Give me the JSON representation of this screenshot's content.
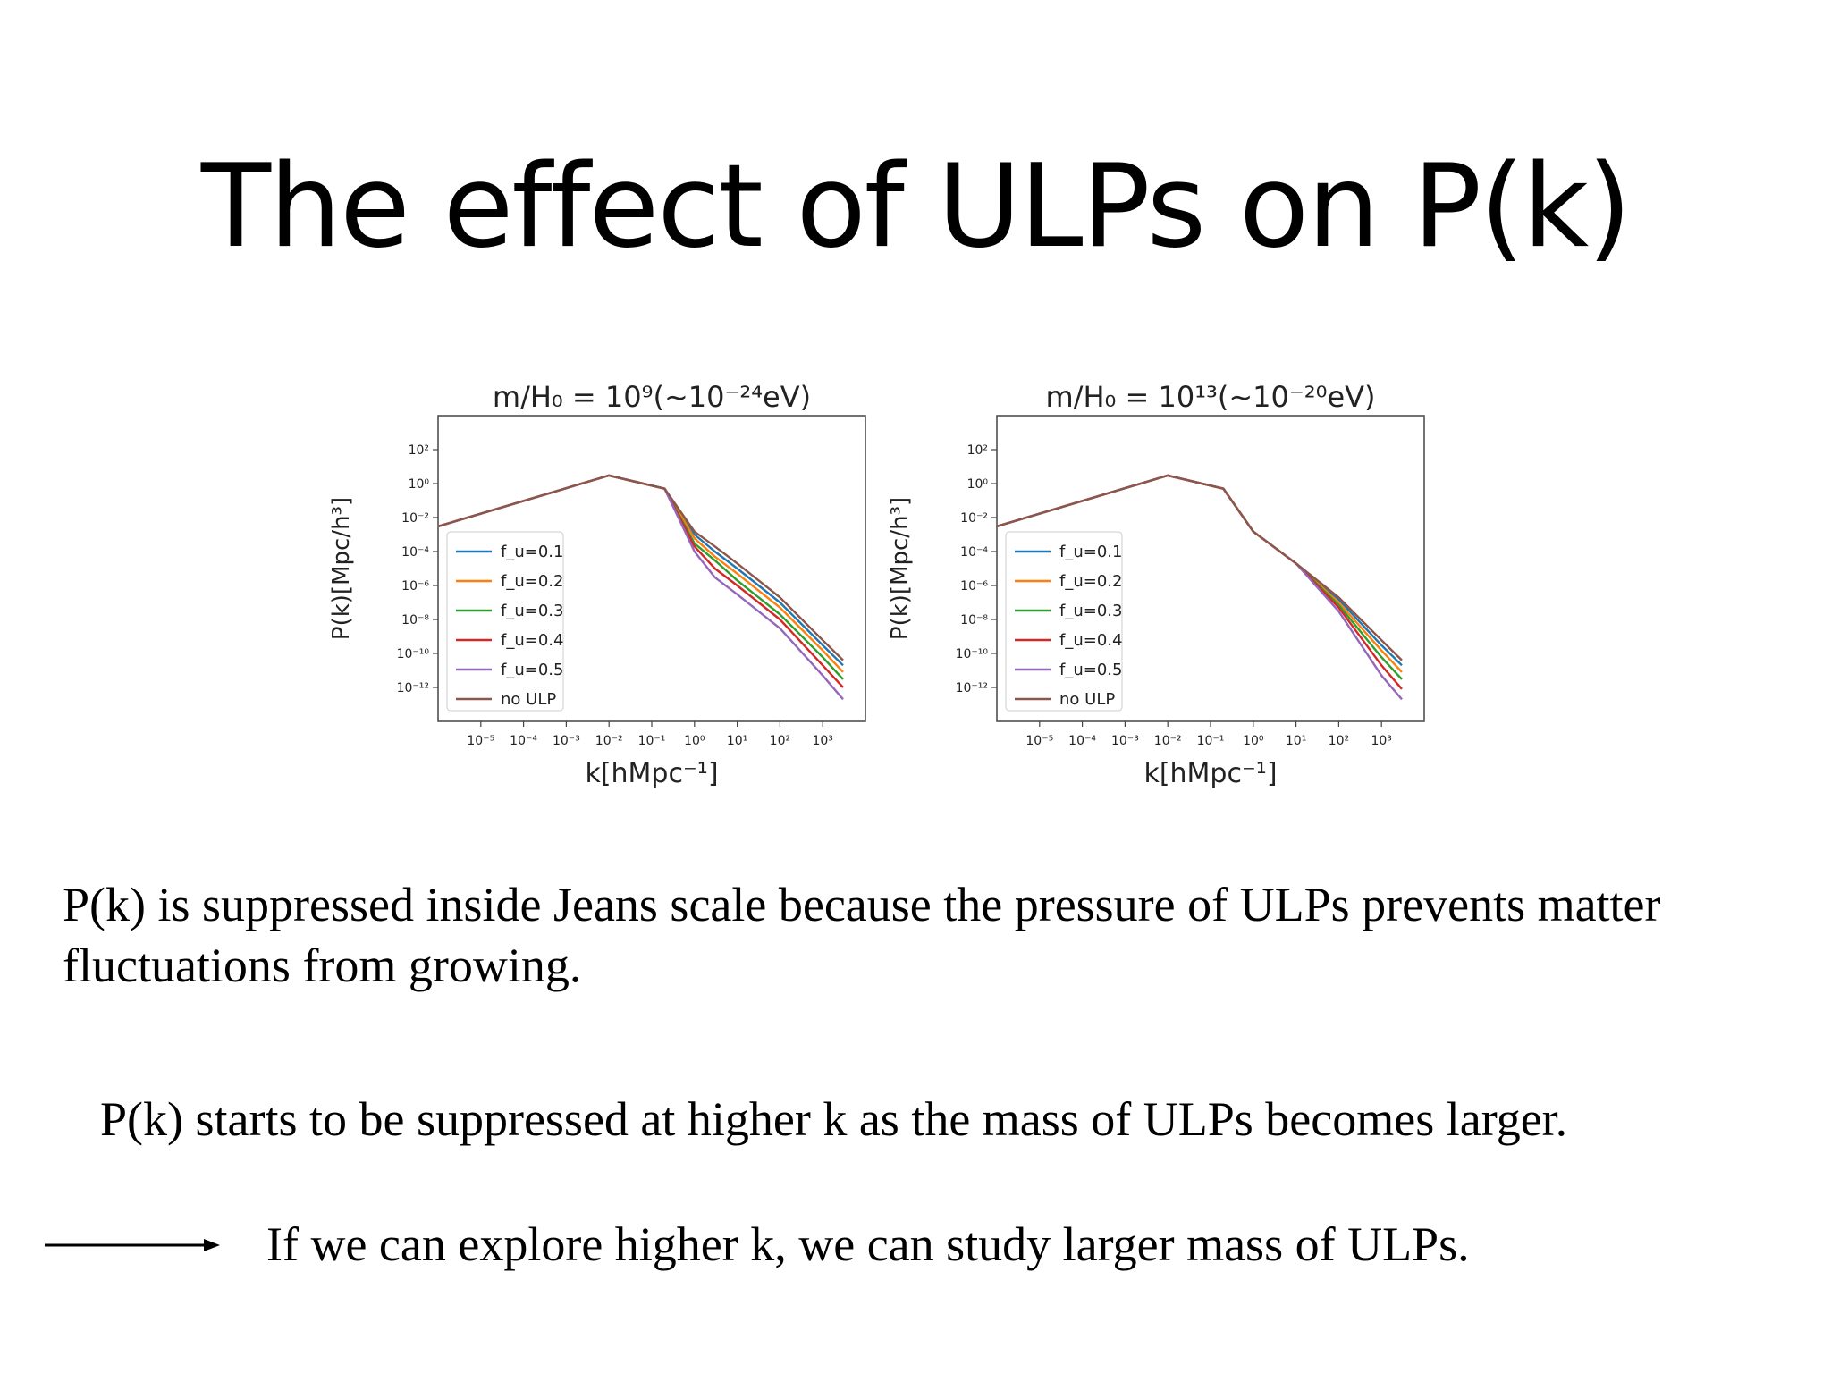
{
  "slide": {
    "title": "The effect of ULPs on P(k)",
    "paragraphs": [
      "P(k) is suppressed inside Jeans scale because the pressure of ULPs prevents matter fluctuations from growing.",
      "P(k) starts to be suppressed at higher k as the mass of ULPs becomes larger.",
      "If we can explore higher k, we can study larger mass of ULPs."
    ],
    "arrow_icon": "right-arrow-icon"
  },
  "chart_data": [
    {
      "type": "line",
      "title": "m/H₀ = 10⁹(~10⁻²⁴eV)",
      "xlabel": "k[hMpc⁻¹]",
      "ylabel": "P(k)[Mpc/h³]",
      "xscale": "log",
      "yscale": "log",
      "xlim": [
        1e-06,
        10000.0
      ],
      "ylim": [
        1e-14,
        10000.0
      ],
      "x_ticks": [
        "10⁻⁵",
        "10⁻⁴",
        "10⁻³",
        "10⁻²",
        "10⁻¹",
        "10⁰",
        "10¹",
        "10²",
        "10³"
      ],
      "y_ticks": [
        "10²",
        "10⁰",
        "10⁻²",
        "10⁻⁴",
        "10⁻⁶",
        "10⁻⁸",
        "10⁻¹⁰",
        "10⁻¹²"
      ],
      "legend_position": "lower-left",
      "grid": false,
      "series": [
        {
          "name": "f_u=0.1",
          "color": "#1f77b4",
          "x": [
            1e-06,
            0.01,
            0.2,
            1,
            3,
            10,
            100,
            1000,
            3000
          ],
          "y": [
            0.003,
            3,
            0.5,
            0.001,
            0.0001,
            1e-05,
            1e-07,
            3e-10,
            2e-11
          ]
        },
        {
          "name": "f_u=0.2",
          "color": "#ff7f0e",
          "x": [
            1e-06,
            0.01,
            0.2,
            1,
            3,
            10,
            100,
            1000,
            3000
          ],
          "y": [
            0.003,
            3,
            0.5,
            0.0006,
            5e-05,
            5e-06,
            5e-08,
            1.5e-10,
            8e-12
          ]
        },
        {
          "name": "f_u=0.3",
          "color": "#2ca02c",
          "x": [
            1e-06,
            0.01,
            0.2,
            1,
            3,
            10,
            100,
            1000,
            3000
          ],
          "y": [
            0.003,
            3,
            0.5,
            0.0003,
            3e-05,
            2e-06,
            2e-08,
            6e-11,
            3e-12
          ]
        },
        {
          "name": "f_u=0.4",
          "color": "#d62728",
          "x": [
            1e-06,
            0.01,
            0.2,
            1,
            3,
            10,
            100,
            1000,
            3000
          ],
          "y": [
            0.003,
            3,
            0.5,
            0.0002,
            1e-05,
            1e-06,
            1e-08,
            2e-11,
            1e-12
          ]
        },
        {
          "name": "f_u=0.5",
          "color": "#9467bd",
          "x": [
            1e-06,
            0.01,
            0.2,
            1,
            3,
            10,
            100,
            1000,
            3000
          ],
          "y": [
            0.003,
            3,
            0.5,
            0.0001,
            3e-06,
            3e-07,
            3e-09,
            5e-12,
            2e-13
          ]
        },
        {
          "name": "no ULP",
          "color": "#8c564b",
          "x": [
            1e-06,
            0.01,
            0.2,
            1,
            3,
            10,
            100,
            1000,
            3000
          ],
          "y": [
            0.003,
            3,
            0.5,
            0.0015,
            0.0002,
            2e-05,
            2e-07,
            6e-10,
            4e-11
          ]
        }
      ]
    },
    {
      "type": "line",
      "title": "m/H₀ = 10¹³(~10⁻²⁰eV)",
      "xlabel": "k[hMpc⁻¹]",
      "ylabel": "P(k)[Mpc/h³]",
      "xscale": "log",
      "yscale": "log",
      "xlim": [
        1e-06,
        10000.0
      ],
      "ylim": [
        1e-14,
        10000.0
      ],
      "x_ticks": [
        "10⁻⁵",
        "10⁻⁴",
        "10⁻³",
        "10⁻²",
        "10⁻¹",
        "10⁰",
        "10¹",
        "10²",
        "10³"
      ],
      "y_ticks": [
        "10²",
        "10⁰",
        "10⁻²",
        "10⁻⁴",
        "10⁻⁶",
        "10⁻⁸",
        "10⁻¹⁰",
        "10⁻¹²"
      ],
      "legend_position": "lower-left",
      "grid": false,
      "series": [
        {
          "name": "f_u=0.1",
          "color": "#1f77b4",
          "x": [
            1e-06,
            0.01,
            0.2,
            1,
            10,
            100,
            1000,
            3000
          ],
          "y": [
            0.003,
            3,
            0.5,
            0.0015,
            2e-05,
            1.5e-07,
            3e-10,
            2e-11
          ]
        },
        {
          "name": "f_u=0.2",
          "color": "#ff7f0e",
          "x": [
            1e-06,
            0.01,
            0.2,
            1,
            10,
            100,
            1000,
            3000
          ],
          "y": [
            0.003,
            3,
            0.5,
            0.0015,
            2e-05,
            1e-07,
            1.5e-10,
            8e-12
          ]
        },
        {
          "name": "f_u=0.3",
          "color": "#2ca02c",
          "x": [
            1e-06,
            0.01,
            0.2,
            1,
            10,
            100,
            1000,
            3000
          ],
          "y": [
            0.003,
            3,
            0.5,
            0.0015,
            2e-05,
            7e-08,
            6e-11,
            3e-12
          ]
        },
        {
          "name": "f_u=0.4",
          "color": "#d62728",
          "x": [
            1e-06,
            0.01,
            0.2,
            1,
            10,
            100,
            1000,
            3000
          ],
          "y": [
            0.003,
            3,
            0.5,
            0.0015,
            2e-05,
            5e-08,
            2e-11,
            8e-13
          ]
        },
        {
          "name": "f_u=0.5",
          "color": "#9467bd",
          "x": [
            1e-06,
            0.01,
            0.2,
            1,
            10,
            100,
            1000,
            3000
          ],
          "y": [
            0.003,
            3,
            0.5,
            0.0015,
            2e-05,
            3e-08,
            5e-12,
            2e-13
          ]
        },
        {
          "name": "no ULP",
          "color": "#8c564b",
          "x": [
            1e-06,
            0.01,
            0.2,
            1,
            10,
            100,
            1000,
            3000
          ],
          "y": [
            0.003,
            3,
            0.5,
            0.0015,
            2e-05,
            2e-07,
            6e-10,
            4e-11
          ]
        }
      ]
    }
  ]
}
